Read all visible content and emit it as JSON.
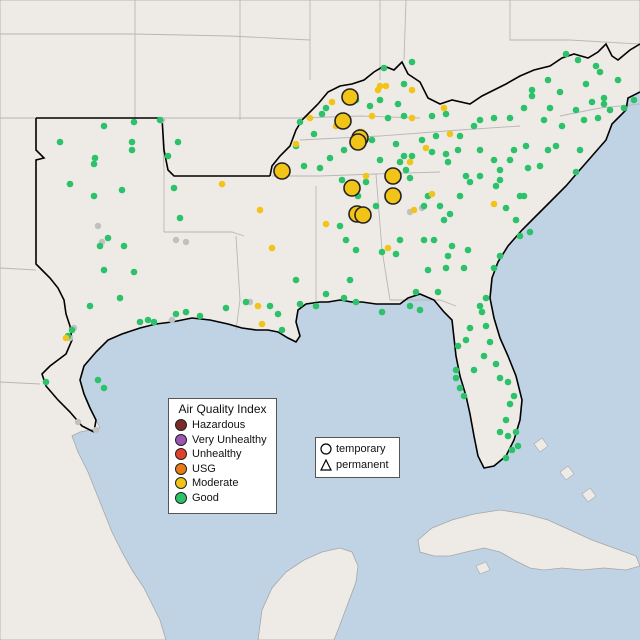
{
  "map": {
    "region": "Southeastern United States",
    "colors": {
      "ocean": "#bfd3e4",
      "land": "#eeeae6",
      "land_shaded": "#e4dcd2",
      "state_border": "#b7b7b7",
      "region_outline": "#000000",
      "good": "#2bc26a",
      "moderate": "#f2c417",
      "no_data": "#c0c0c0",
      "unhealthy_sensitive": "#e87b14",
      "unhealthy": "#e0412c",
      "very_unhealthy": "#9b55b4",
      "hazardous": "#7a2a2a"
    },
    "large_monitors_level": "Moderate"
  },
  "aqi_legend": {
    "title": "Air Quality Index",
    "items": [
      {
        "label": "Hazardous",
        "color": "#7a2a2a"
      },
      {
        "label": "Very Unhealthy",
        "color": "#9b55b4"
      },
      {
        "label": "Unhealthy",
        "color": "#e0412c"
      },
      {
        "label": "USG",
        "color": "#e87b14"
      },
      {
        "label": "Moderate",
        "color": "#f2c417"
      },
      {
        "label": "Good",
        "color": "#2bc26a"
      }
    ]
  },
  "shape_legend": {
    "items": [
      {
        "label": "temporary",
        "shape": "circle-icon"
      },
      {
        "label": "permanent",
        "shape": "triangle-icon"
      }
    ]
  }
}
